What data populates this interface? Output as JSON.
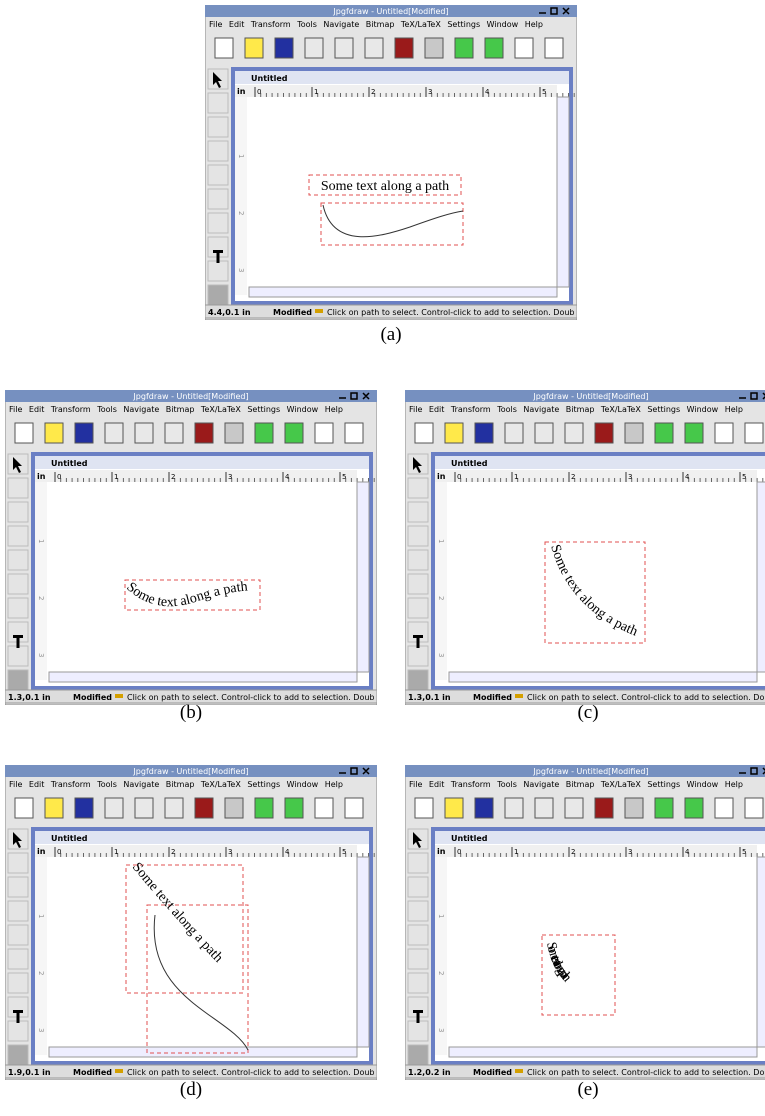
{
  "app": {
    "window_title": "Jpgfdraw - Untitled[Modified]",
    "menu": [
      "File",
      "Edit",
      "Transform",
      "Tools",
      "Navigate",
      "Bitmap",
      "TeX/LaTeX",
      "Settings",
      "Window",
      "Help"
    ],
    "doc_title": "Untitled",
    "ruler_unit": "in",
    "ruler_labels": [
      0,
      1,
      2,
      3,
      4,
      5
    ],
    "status_modified": "Modified",
    "status_message": "Click on path to select. Control-click to add to selection. Doub",
    "path_text": "Some text along a path"
  },
  "panels": [
    {
      "caption": "(a)",
      "coordinate": "4.4,0.1 in"
    },
    {
      "caption": "(b)",
      "coordinate": "1.3,0.1 in"
    },
    {
      "caption": "(c)",
      "coordinate": "1.3,0.1 in"
    },
    {
      "caption": "(d)",
      "coordinate": "1.9,0.1 in"
    },
    {
      "caption": "(e)",
      "coordinate": "1.2,0.2 in"
    }
  ]
}
